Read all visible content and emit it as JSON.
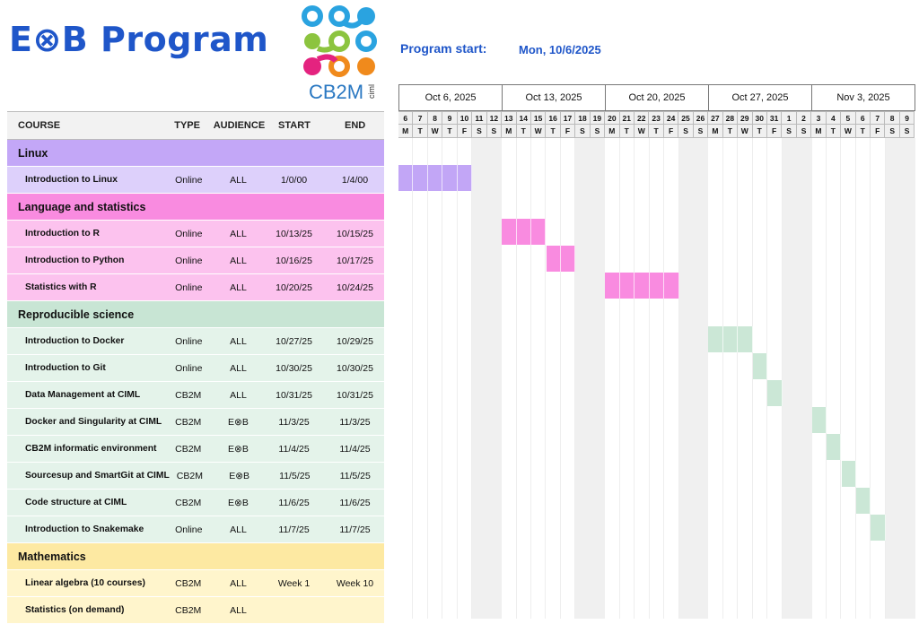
{
  "title": "E⊗B Program",
  "logo": {
    "text": "CB2M",
    "small_text": "ciml"
  },
  "program_start": {
    "label": "Program start:",
    "value": "Mon, 10/6/2025"
  },
  "table": {
    "headers": [
      "COURSE",
      "TYPE",
      "AUDIENCE",
      "START",
      "END"
    ],
    "sections": [
      {
        "name": "Linux",
        "header_color": "#c3a7f7",
        "row_color": "#ddd0fb",
        "bar_color": "#c2a6f6",
        "courses": [
          {
            "course": "Introduction to Linux",
            "type": "Online",
            "audience": "ALL",
            "start": "1/0/00",
            "end": "1/4/00",
            "bar": [
              0,
              5
            ]
          }
        ]
      },
      {
        "name": "Language and statistics",
        "header_color": "#f98be0",
        "row_color": "#fcc2ee",
        "bar_color": "#f98be0",
        "courses": [
          {
            "course": "Introduction to R",
            "type": "Online",
            "audience": "ALL",
            "start": "10/13/25",
            "end": "10/15/25",
            "bar": [
              7,
              3
            ]
          },
          {
            "course": "Introduction to Python",
            "type": "Online",
            "audience": "ALL",
            "start": "10/16/25",
            "end": "10/17/25",
            "bar": [
              10,
              2
            ]
          },
          {
            "course": "Statistics with R",
            "type": "Online",
            "audience": "ALL",
            "start": "10/20/25",
            "end": "10/24/25",
            "bar": [
              14,
              5
            ]
          }
        ]
      },
      {
        "name": "Reproducible science",
        "header_color": "#c8e5d4",
        "row_color": "#e4f3ea",
        "bar_color": "#cbe7d6",
        "courses": [
          {
            "course": "Introduction to Docker",
            "type": "Online",
            "audience": "ALL",
            "start": "10/27/25",
            "end": "10/29/25",
            "bar": [
              21,
              3
            ]
          },
          {
            "course": "Introduction to Git",
            "type": "Online",
            "audience": "ALL",
            "start": "10/30/25",
            "end": "10/30/25",
            "bar": [
              24,
              1
            ]
          },
          {
            "course": "Data Management at CIML",
            "type": "CB2M",
            "audience": "ALL",
            "start": "10/31/25",
            "end": "10/31/25",
            "bar": [
              25,
              1
            ]
          },
          {
            "course": "Docker and Singularity at CIML",
            "type": "CB2M",
            "audience": "E⊗B",
            "start": "11/3/25",
            "end": "11/3/25",
            "bar": [
              28,
              1
            ]
          },
          {
            "course": "CB2M informatic environment",
            "type": "CB2M",
            "audience": "E⊗B",
            "start": "11/4/25",
            "end": "11/4/25",
            "bar": [
              29,
              1
            ]
          },
          {
            "course": "Sourcesup and SmartGit at CIML",
            "type": "CB2M",
            "audience": "E⊗B",
            "start": "11/5/25",
            "end": "11/5/25",
            "bar": [
              30,
              1
            ]
          },
          {
            "course": "Code structure at CIML",
            "type": "CB2M",
            "audience": "E⊗B",
            "start": "11/6/25",
            "end": "11/6/25",
            "bar": [
              31,
              1
            ]
          },
          {
            "course": "Introduction to Snakemake",
            "type": "Online",
            "audience": "ALL",
            "start": "11/7/25",
            "end": "11/7/25",
            "bar": [
              32,
              1
            ]
          }
        ]
      },
      {
        "name": "Mathematics",
        "header_color": "#fde9a2",
        "row_color": "#fff5cc",
        "bar_color": "#fde9a2",
        "courses": [
          {
            "course": "Linear algebra (10 courses)",
            "type": "CB2M",
            "audience": "ALL",
            "start": "Week 1",
            "end": "Week 10"
          },
          {
            "course": "Statistics (on demand)",
            "type": "CB2M",
            "audience": "ALL",
            "start": "",
            "end": ""
          }
        ]
      }
    ]
  },
  "gantt": {
    "weeks": [
      "Oct 6, 2025",
      "Oct 13, 2025",
      "Oct 20, 2025",
      "Oct 27, 2025",
      "Nov 3, 2025"
    ],
    "day_numbers": [
      "6",
      "7",
      "8",
      "9",
      "10",
      "11",
      "12",
      "13",
      "14",
      "15",
      "16",
      "17",
      "18",
      "19",
      "20",
      "21",
      "22",
      "23",
      "24",
      "25",
      "26",
      "27",
      "28",
      "29",
      "30",
      "31",
      "1",
      "2",
      "3",
      "4",
      "5",
      "6",
      "7",
      "8",
      "9"
    ],
    "weekdays": [
      "M",
      "T",
      "W",
      "T",
      "F",
      "S",
      "S"
    ]
  }
}
